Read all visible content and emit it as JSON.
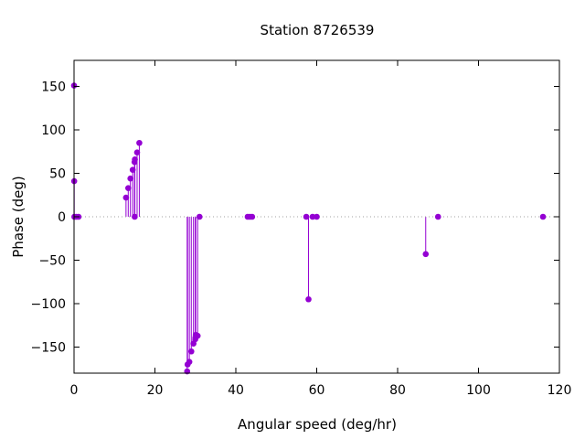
{
  "chart_data": {
    "type": "scatter",
    "style": "impulses",
    "title": "Station 8726539",
    "xlabel": "Angular speed (deg/hr)",
    "ylabel": "Phase (deg)",
    "xlim": [
      0,
      120
    ],
    "ylim": [
      -180,
      180
    ],
    "xticks": [
      0,
      20,
      40,
      60,
      80,
      100,
      120
    ],
    "yticks": [
      -150,
      -100,
      -50,
      0,
      50,
      100,
      150
    ],
    "grid": false,
    "zero_line": "dotted",
    "color": "#9400d3",
    "points": [
      {
        "x": 0.0,
        "y": 151
      },
      {
        "x": 0.04,
        "y": 41
      },
      {
        "x": 0.08,
        "y": 0
      },
      {
        "x": 0.55,
        "y": 0
      },
      {
        "x": 1.1,
        "y": 0
      },
      {
        "x": 12.85,
        "y": 22
      },
      {
        "x": 13.4,
        "y": 33
      },
      {
        "x": 13.94,
        "y": 44
      },
      {
        "x": 14.5,
        "y": 54
      },
      {
        "x": 14.96,
        "y": 63
      },
      {
        "x": 15.04,
        "y": 66
      },
      {
        "x": 15.0,
        "y": 0
      },
      {
        "x": 15.59,
        "y": 74
      },
      {
        "x": 16.14,
        "y": 85
      },
      {
        "x": 27.97,
        "y": -178
      },
      {
        "x": 28.07,
        "y": -170
      },
      {
        "x": 28.51,
        "y": -167
      },
      {
        "x": 28.99,
        "y": -155
      },
      {
        "x": 29.53,
        "y": -146
      },
      {
        "x": 29.96,
        "y": -141
      },
      {
        "x": 30.0,
        "y": -139
      },
      {
        "x": 30.08,
        "y": -136
      },
      {
        "x": 30.56,
        "y": -137
      },
      {
        "x": 31.02,
        "y": 0
      },
      {
        "x": 42.93,
        "y": 0
      },
      {
        "x": 43.48,
        "y": 0
      },
      {
        "x": 44.03,
        "y": 0
      },
      {
        "x": 57.42,
        "y": 0
      },
      {
        "x": 57.97,
        "y": -95
      },
      {
        "x": 58.98,
        "y": 0
      },
      {
        "x": 60.0,
        "y": 0
      },
      {
        "x": 86.95,
        "y": -43
      },
      {
        "x": 90.0,
        "y": 0
      },
      {
        "x": 115.94,
        "y": 0
      }
    ]
  }
}
